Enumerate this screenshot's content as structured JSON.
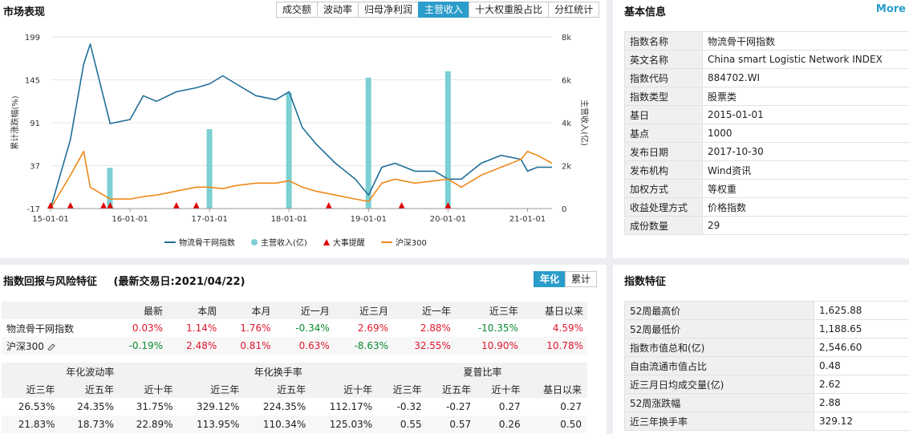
{
  "market": {
    "title": "市场表现",
    "tabs": [
      "成交额",
      "波动率",
      "归母净利润",
      "主营收入",
      "十大权重股占比",
      "分红统计"
    ],
    "active_tab": 3
  },
  "chart_data": {
    "type": "line",
    "x": [
      "15-01-01",
      "15-04-01",
      "15-06-01",
      "15-07-01",
      "15-10-01",
      "16-01-01",
      "16-03-01",
      "16-05-01",
      "16-08-01",
      "16-11-01",
      "17-01-01",
      "17-03-01",
      "17-05-01",
      "17-08-01",
      "17-11-01",
      "18-01-01",
      "18-03-01",
      "18-05-01",
      "18-08-01",
      "18-11-01",
      "19-01-01",
      "19-03-01",
      "19-05-01",
      "19-08-01",
      "19-11-01",
      "20-01-01",
      "20-03-01",
      "20-06-01",
      "20-09-01",
      "20-12-01",
      "21-01-01",
      "21-02-15",
      "21-04-22"
    ],
    "xticks": [
      "15-01-01",
      "16-01-01",
      "17-01-01",
      "18-01-01",
      "19-01-01",
      "20-01-01",
      "21-01-01"
    ],
    "yticks_left": [
      "199",
      "145",
      "91",
      "37",
      "-17"
    ],
    "yticks_right": [
      "8k",
      "6k",
      "4k",
      "2k",
      "0"
    ],
    "ylabel_left": "累计涨跌幅(%)",
    "ylabel_right": "主营收入(亿)",
    "ylim_left": [
      -17,
      199
    ],
    "ylim_right": [
      0,
      8000
    ],
    "series": [
      {
        "name": "物流骨干网指数",
        "type": "line",
        "color": "#1f6e97",
        "values": [
          -17,
          70,
          165,
          190,
          90,
          95,
          125,
          118,
          130,
          135,
          140,
          150,
          140,
          125,
          120,
          130,
          85,
          65,
          40,
          20,
          0,
          35,
          40,
          30,
          30,
          20,
          20,
          40,
          50,
          45,
          30,
          35,
          35
        ]
      },
      {
        "name": "沪深300",
        "type": "line",
        "color": "#ee8a1a",
        "values": [
          -17,
          25,
          55,
          10,
          -5,
          -5,
          -2,
          0,
          5,
          10,
          10,
          8,
          12,
          15,
          15,
          18,
          10,
          5,
          0,
          -5,
          -8,
          15,
          20,
          15,
          18,
          20,
          10,
          25,
          35,
          45,
          55,
          50,
          40
        ]
      },
      {
        "name": "主营收入(亿)",
        "type": "bar",
        "color": "#7ccfd3",
        "x": [
          "15-09-30",
          "16-12-31",
          "17-12-31",
          "18-12-31",
          "19-12-31"
        ],
        "values": [
          1900,
          3700,
          5400,
          6100,
          6400
        ]
      },
      {
        "name": "大事提醒",
        "type": "marker",
        "color": "#e00000",
        "x": [
          "15-01-01",
          "15-04-01",
          "15-09-01",
          "15-10-01",
          "16-08-01",
          "16-11-01",
          "18-07-01",
          "19-06-01",
          "20-01-01"
        ]
      }
    ],
    "legend": [
      "物流骨干网指数",
      "主营收入(亿)",
      "大事提醒",
      "沪深300"
    ],
    "legend_position": "bottom"
  },
  "basic": {
    "title": "基本信息",
    "more": "More",
    "rows": [
      [
        "指数名称",
        "物流骨干网指数"
      ],
      [
        "英文名称",
        "China smart Logistic Network INDEX"
      ],
      [
        "指数代码",
        "884702.WI"
      ],
      [
        "指数类型",
        "股票类"
      ],
      [
        "基日",
        "2015-01-01"
      ],
      [
        "基点",
        "1000"
      ],
      [
        "发布日期",
        "2017-10-30"
      ],
      [
        "发布机构",
        "Wind资讯"
      ],
      [
        "加权方式",
        "等权重"
      ],
      [
        "收益处理方式",
        "价格指数"
      ],
      [
        "成份数量",
        "29"
      ]
    ]
  },
  "returns": {
    "title": "指数回报与风险特征",
    "date_label": "(最新交易日:2021/04/22)",
    "tabs": [
      "年化",
      "累计"
    ],
    "active_tab": 0,
    "headers": [
      "",
      "最新",
      "本周",
      "本月",
      "近一月",
      "近三月",
      "近一年",
      "近三年",
      "基日以来"
    ],
    "rows": [
      {
        "name": "物流骨干网指数",
        "values": [
          "0.03%",
          "1.14%",
          "1.76%",
          "-0.34%",
          "2.69%",
          "2.88%",
          "-10.35%",
          "4.59%"
        ]
      },
      {
        "name": "沪深300",
        "values": [
          "-0.19%",
          "2.48%",
          "0.81%",
          "0.63%",
          "-8.63%",
          "32.55%",
          "10.90%",
          "10.78%"
        ]
      }
    ],
    "risk_groups": [
      "年化波动率",
      "年化换手率",
      "夏普比率"
    ],
    "risk_headers": [
      "近三年",
      "近五年",
      "近十年",
      "近三年",
      "近五年",
      "近十年",
      "近三年",
      "近五年",
      "近十年",
      "基日以来"
    ],
    "risk_rows": [
      [
        "26.53%",
        "24.35%",
        "31.75%",
        "329.12%",
        "224.35%",
        "112.17%",
        "-0.32",
        "-0.27",
        "0.27",
        "0.27"
      ],
      [
        "21.83%",
        "18.73%",
        "22.89%",
        "113.95%",
        "110.34%",
        "125.03%",
        "0.55",
        "0.57",
        "0.26",
        "0.50"
      ]
    ]
  },
  "features": {
    "title": "指数特征",
    "rows": [
      [
        "52周最高价",
        "1,625.88"
      ],
      [
        "52周最低价",
        "1,188.65"
      ],
      [
        "指数市值总和(亿)",
        "2,546.60"
      ],
      [
        "自由流通市值占比",
        "0.48"
      ],
      [
        "近三月日均成交量(亿)",
        "2.62"
      ],
      [
        "52周涨跌幅",
        "2.88"
      ],
      [
        "近三年换手率",
        "329.12"
      ]
    ]
  },
  "colors": {
    "accent": "#2a9dcb",
    "up": "#e0162b",
    "down": "#0a8a31"
  }
}
